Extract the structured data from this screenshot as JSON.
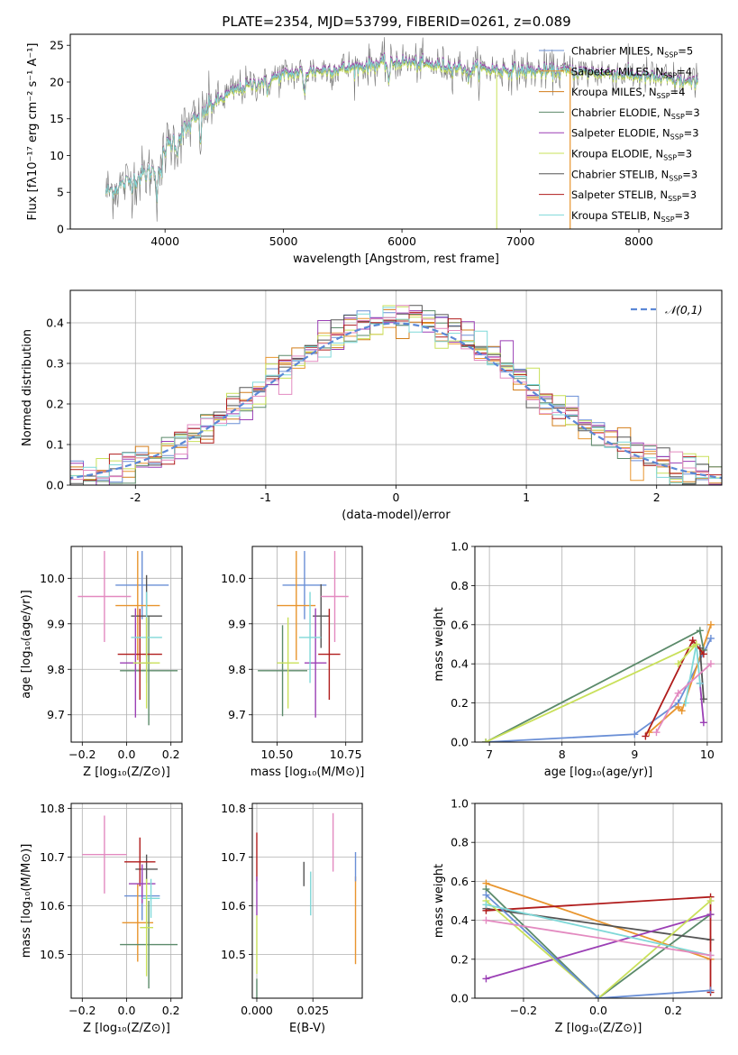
{
  "chart_data": [
    {
      "id": "spectrum",
      "type": "line",
      "title": "PLATE=2354, MJD=53799, FIBERID=0261, z=0.089",
      "xlabel": "wavelength [Angstrom, rest frame]",
      "ylabel": "Flux [fλ10⁻¹⁷ erg cm⁻² s⁻¹ A⁻¹]",
      "xlim": [
        3200,
        8700
      ],
      "ylim": [
        0,
        26.5
      ],
      "xticks": [
        4000,
        5000,
        6000,
        7000,
        8000
      ],
      "yticks": [
        0,
        5,
        10,
        15,
        20,
        25
      ],
      "legend_position": "right",
      "series": [
        {
          "name": "Chabrier MILES, N_SSP=5",
          "color": "#6a8fd6",
          "scale": 1.0
        },
        {
          "name": "Salpeter MILES, N_SSP=4",
          "color": "#e8952e",
          "scale": 0.995
        },
        {
          "name": "Kroupa MILES, N_SSP=4",
          "color": "#d27d1a",
          "scale": 1.005
        },
        {
          "name": "Chabrier ELODIE, N_SSP=3",
          "color": "#5b8a6a",
          "scale": 0.99
        },
        {
          "name": "Salpeter ELODIE, N_SSP=3",
          "color": "#9b3fb5",
          "scale": 1.01
        },
        {
          "name": "Kroupa ELODIE, N_SSP=3",
          "color": "#c9e05a",
          "scale": 0.985
        },
        {
          "name": "Chabrier STELIB, N_SSP=3",
          "color": "#555555",
          "scale": 1.0
        },
        {
          "name": "Salpeter STELIB, N_SSP=3",
          "color": "#b01c1c",
          "scale": 1.0
        },
        {
          "name": "Kroupa STELIB, N_SSP=3",
          "color": "#7fd8d8",
          "scale": 1.0
        }
      ],
      "continuum": [
        [
          3500,
          5
        ],
        [
          3700,
          6.5
        ],
        [
          3900,
          8
        ],
        [
          4000,
          11
        ],
        [
          4200,
          14
        ],
        [
          4400,
          17
        ],
        [
          4600,
          19
        ],
        [
          4800,
          20
        ],
        [
          5000,
          21
        ],
        [
          5200,
          21.5
        ],
        [
          5400,
          21.7
        ],
        [
          5600,
          22
        ],
        [
          5800,
          22.5
        ],
        [
          6000,
          22.8
        ],
        [
          6200,
          22.4
        ],
        [
          6500,
          22
        ],
        [
          6800,
          21.7
        ],
        [
          7100,
          21.5
        ],
        [
          7400,
          21.5
        ],
        [
          7800,
          21.2
        ],
        [
          8200,
          20.5
        ],
        [
          8500,
          19.8
        ]
      ],
      "data_color": "#777777"
    },
    {
      "id": "residuals",
      "type": "histogram",
      "xlabel": "(data-model)/error",
      "ylabel": "Normed distribution",
      "xlim": [
        -2.5,
        2.5
      ],
      "ylim": [
        0,
        0.48
      ],
      "xticks": [
        -2,
        -1,
        0,
        1,
        2
      ],
      "yticks": [
        0.0,
        0.1,
        0.2,
        0.3,
        0.4
      ],
      "legend": "𝒩(0,1)",
      "legend_position": "top-right",
      "gaussian_color": "#5b88d6",
      "bin_width": 0.1,
      "series_colors": [
        "#6a8fd6",
        "#e8952e",
        "#d27d1a",
        "#5b8a6a",
        "#9b3fb5",
        "#c9e05a",
        "#555555",
        "#b01c1c",
        "#7fd8d8",
        "#e38ac0"
      ]
    },
    {
      "id": "age_vs_Z",
      "type": "scatter",
      "xlabel": "Z [log₁₀(Z/Z⊙)]",
      "ylabel": "age  [log₁₀(age/yr)]",
      "xlim": [
        -0.25,
        0.25
      ],
      "ylim": [
        9.64,
        10.07
      ],
      "xticks": [
        -0.2,
        0.0,
        0.2
      ],
      "yticks": [
        9.7,
        9.8,
        9.9,
        10.0
      ],
      "points": [
        {
          "color": "#6a8fd6",
          "x": 0.07,
          "xerr": 0.12,
          "y": 9.985,
          "yerr": 0.075
        },
        {
          "color": "#e8952e",
          "x": 0.05,
          "xerr": 0.1,
          "y": 9.94,
          "yerr": 0.12
        },
        {
          "color": "#5b8a6a",
          "x": 0.1,
          "xerr": 0.13,
          "y": 9.797,
          "yerr": 0.12
        },
        {
          "color": "#555555",
          "x": 0.09,
          "xerr": 0.07,
          "y": 9.917,
          "yerr": 0.09
        },
        {
          "color": "#b01c1c",
          "x": 0.06,
          "xerr": 0.1,
          "y": 9.833,
          "yerr": 0.1
        },
        {
          "color": "#9b3fb5",
          "x": 0.04,
          "xerr": 0.07,
          "y": 9.814,
          "yerr": 0.12
        },
        {
          "color": "#7fd8d8",
          "x": 0.09,
          "xerr": 0.07,
          "y": 9.87,
          "yerr": 0.1
        },
        {
          "color": "#c9e05a",
          "x": 0.09,
          "xerr": 0.06,
          "y": 9.814,
          "yerr": 0.1
        },
        {
          "color": "#e38ac0",
          "x": -0.1,
          "xerr": 0.12,
          "y": 9.96,
          "yerr": 0.1
        }
      ]
    },
    {
      "id": "age_vs_mass",
      "type": "scatter",
      "xlabel": "mass [log₁₀(M/M⊙)]",
      "ylabel": "",
      "xlim": [
        10.41,
        10.81
      ],
      "ylim": [
        9.64,
        10.07
      ],
      "xticks": [
        10.5,
        10.75
      ],
      "xticklabels": [
        "10.50",
        "10.75"
      ],
      "yticks": [
        9.7,
        9.8,
        9.9,
        10.0
      ],
      "points": [
        {
          "color": "#6a8fd6",
          "x": 10.6,
          "xerr": 0.08,
          "y": 9.985,
          "yerr": 0.075
        },
        {
          "color": "#e8952e",
          "x": 10.57,
          "xerr": 0.07,
          "y": 9.94,
          "yerr": 0.12
        },
        {
          "color": "#5b8a6a",
          "x": 10.52,
          "xerr": 0.09,
          "y": 9.797,
          "yerr": 0.1
        },
        {
          "color": "#555555",
          "x": 10.66,
          "xerr": 0.03,
          "y": 9.917,
          "yerr": 0.07
        },
        {
          "color": "#b01c1c",
          "x": 10.69,
          "xerr": 0.04,
          "y": 9.833,
          "yerr": 0.1
        },
        {
          "color": "#9b3fb5",
          "x": 10.64,
          "xerr": 0.04,
          "y": 9.814,
          "yerr": 0.12
        },
        {
          "color": "#7fd8d8",
          "x": 10.62,
          "xerr": 0.04,
          "y": 9.87,
          "yerr": 0.1
        },
        {
          "color": "#c9e05a",
          "x": 10.54,
          "xerr": 0.04,
          "y": 9.814,
          "yerr": 0.1
        },
        {
          "color": "#e38ac0",
          "x": 10.71,
          "xerr": 0.05,
          "y": 9.96,
          "yerr": 0.1
        }
      ]
    },
    {
      "id": "massweight_vs_age",
      "type": "line",
      "xlabel": "age  [log₁₀(age/yr)]",
      "ylabel": "mass weight",
      "xlim": [
        6.8,
        10.2
      ],
      "ylim": [
        0,
        1
      ],
      "xticks": [
        7,
        8,
        9,
        10
      ],
      "yticks": [
        0.0,
        0.2,
        0.4,
        0.6,
        0.8,
        1.0
      ],
      "series": [
        {
          "color": "#6a8fd6",
          "points": [
            [
              6.95,
              0.0
            ],
            [
              9.0,
              0.04
            ],
            [
              9.6,
              0.2
            ],
            [
              10.05,
              0.53
            ]
          ]
        },
        {
          "color": "#e8952e",
          "points": [
            [
              9.2,
              0.05
            ],
            [
              9.6,
              0.18
            ],
            [
              9.65,
              0.16
            ],
            [
              10.05,
              0.6
            ]
          ]
        },
        {
          "color": "#5b8a6a",
          "points": [
            [
              6.95,
              0.0
            ],
            [
              9.9,
              0.57
            ],
            [
              9.95,
              0.47
            ]
          ]
        },
        {
          "color": "#555555",
          "points": [
            [
              9.9,
              0.48
            ],
            [
              9.95,
              0.22
            ]
          ]
        },
        {
          "color": "#b01c1c",
          "points": [
            [
              9.15,
              0.03
            ],
            [
              9.8,
              0.52
            ],
            [
              9.95,
              0.45
            ]
          ]
        },
        {
          "color": "#9b3fb5",
          "points": [
            [
              9.9,
              0.3
            ],
            [
              9.95,
              0.1
            ]
          ]
        },
        {
          "color": "#7fd8d8",
          "points": [
            [
              9.7,
              0.2
            ],
            [
              9.85,
              0.5
            ],
            [
              9.9,
              0.3
            ]
          ]
        },
        {
          "color": "#c9e05a",
          "points": [
            [
              6.95,
              0.0
            ],
            [
              9.85,
              0.5
            ],
            [
              9.6,
              0.4
            ]
          ]
        },
        {
          "color": "#e38ac0",
          "points": [
            [
              9.3,
              0.05
            ],
            [
              9.6,
              0.25
            ],
            [
              10.05,
              0.4
            ]
          ]
        }
      ]
    },
    {
      "id": "mass_vs_Z",
      "type": "scatter",
      "xlabel": "Z [log₁₀(Z/Z⊙)]",
      "ylabel": "mass [log₁₀(M/M⊙)]",
      "xlim": [
        -0.25,
        0.25
      ],
      "ylim": [
        10.41,
        10.81
      ],
      "xticks": [
        -0.2,
        0.0,
        0.2
      ],
      "yticks": [
        10.5,
        10.6,
        10.7,
        10.8
      ],
      "points": [
        {
          "color": "#6a8fd6",
          "x": 0.07,
          "xerr": 0.08,
          "y": 10.62,
          "yerr": 0.05
        },
        {
          "color": "#e8952e",
          "x": 0.05,
          "xerr": 0.07,
          "y": 10.565,
          "yerr": 0.08
        },
        {
          "color": "#5b8a6a",
          "x": 0.1,
          "xerr": 0.13,
          "y": 10.52,
          "yerr": 0.09
        },
        {
          "color": "#555555",
          "x": 0.09,
          "xerr": 0.05,
          "y": 10.675,
          "yerr": 0.03
        },
        {
          "color": "#b01c1c",
          "x": 0.06,
          "xerr": 0.07,
          "y": 10.69,
          "yerr": 0.05
        },
        {
          "color": "#9b3fb5",
          "x": 0.07,
          "xerr": 0.06,
          "y": 10.645,
          "yerr": 0.04
        },
        {
          "color": "#7fd8d8",
          "x": 0.11,
          "xerr": 0.04,
          "y": 10.615,
          "yerr": 0.04
        },
        {
          "color": "#c9e05a",
          "x": 0.09,
          "xerr": 0.03,
          "y": 10.555,
          "yerr": 0.1
        },
        {
          "color": "#e38ac0",
          "x": -0.1,
          "xerr": 0.1,
          "y": 10.705,
          "yerr": 0.08
        }
      ]
    },
    {
      "id": "mass_vs_ebv",
      "type": "scatter",
      "xlabel": "E(B-V)",
      "ylabel": "",
      "xlim": [
        -0.002,
        0.047
      ],
      "ylim": [
        10.41,
        10.81
      ],
      "xticks": [
        0.0,
        0.025
      ],
      "xticklabels": [
        "0.000",
        "0.025"
      ],
      "yticks": [
        10.5,
        10.6,
        10.7,
        10.8
      ],
      "points": [
        {
          "color": "#b01c1c",
          "x": 0.0,
          "y": 10.7,
          "yerr": 0.05
        },
        {
          "color": "#9b3fb5",
          "x": 0.0,
          "y": 10.62,
          "yerr": 0.04
        },
        {
          "color": "#c9e05a",
          "x": 0.0,
          "y": 10.52,
          "yerr": 0.06
        },
        {
          "color": "#5b8a6a",
          "x": 0.0,
          "y": 10.43,
          "yerr": 0.02
        },
        {
          "color": "#555555",
          "x": 0.021,
          "y": 10.665,
          "yerr": 0.025
        },
        {
          "color": "#7fd8d8",
          "x": 0.024,
          "y": 10.625,
          "yerr": 0.045
        },
        {
          "color": "#e38ac0",
          "x": 0.034,
          "y": 10.73,
          "yerr": 0.06
        },
        {
          "color": "#e8952e",
          "x": 0.044,
          "y": 10.57,
          "yerr": 0.09
        },
        {
          "color": "#6a8fd6",
          "x": 0.044,
          "y": 10.68,
          "yerr": 0.03
        }
      ]
    },
    {
      "id": "massweight_vs_Z",
      "type": "line",
      "xlabel": "Z [log₁₀(Z/Z⊙)]",
      "ylabel": "mass weight",
      "xlim": [
        -0.33,
        0.33
      ],
      "ylim": [
        0,
        1
      ],
      "xticks": [
        -0.2,
        0.0,
        0.2
      ],
      "yticks": [
        0.0,
        0.2,
        0.4,
        0.6,
        0.8,
        1.0
      ],
      "series": [
        {
          "color": "#e8952e",
          "points": [
            [
              -0.3,
              0.59
            ],
            [
              0.3,
              0.2
            ]
          ]
        },
        {
          "color": "#5b8a6a",
          "points": [
            [
              -0.3,
              0.56
            ],
            [
              0.0,
              0.0
            ],
            [
              0.3,
              0.43
            ]
          ]
        },
        {
          "color": "#555555",
          "points": [
            [
              -0.3,
              0.46
            ],
            [
              0.3,
              0.3
            ]
          ]
        },
        {
          "color": "#b01c1c",
          "points": [
            [
              -0.3,
              0.45
            ],
            [
              0.3,
              0.52
            ],
            [
              0.3,
              0.03
            ]
          ]
        },
        {
          "color": "#9b3fb5",
          "points": [
            [
              -0.3,
              0.1
            ],
            [
              0.3,
              0.43
            ]
          ]
        },
        {
          "color": "#c9e05a",
          "points": [
            [
              -0.3,
              0.5
            ],
            [
              0.0,
              0.0
            ],
            [
              0.3,
              0.5
            ]
          ]
        },
        {
          "color": "#6a8fd6",
          "points": [
            [
              -0.3,
              0.53
            ],
            [
              0.0,
              0.0
            ],
            [
              0.3,
              0.04
            ]
          ]
        },
        {
          "color": "#7fd8d8",
          "points": [
            [
              -0.3,
              0.48
            ],
            [
              0.3,
              0.22
            ]
          ]
        },
        {
          "color": "#e38ac0",
          "points": [
            [
              -0.3,
              0.4
            ],
            [
              0.3,
              0.22
            ]
          ]
        }
      ]
    }
  ]
}
